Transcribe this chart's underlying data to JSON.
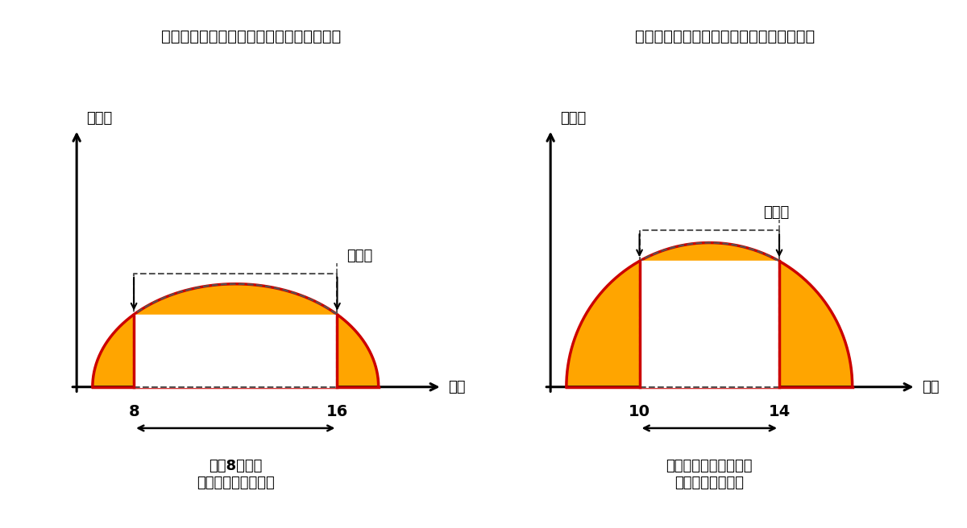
{
  "bg_color": "#ffffff",
  "left_title": "【固定スケジュールの出力制御イメージ】",
  "right_title": "【更新スケジュールの出力制御イメージ】",
  "left_ylabel": "発電量",
  "right_ylabel": "発電量",
  "left_xlabel": "時間",
  "right_xlabel": "時間",
  "left_note": "原則8時間は\n発電分がゼロになる",
  "right_note": "当日の需給状況により\n制御分が変動する",
  "orange_color": "#FFA500",
  "red_color": "#CC0000",
  "dashed_color": "#555555",
  "text_color": "#000000",
  "title_fontsize": 14,
  "label_fontsize": 13,
  "note_fontsize": 13,
  "tick_fontsize": 14
}
